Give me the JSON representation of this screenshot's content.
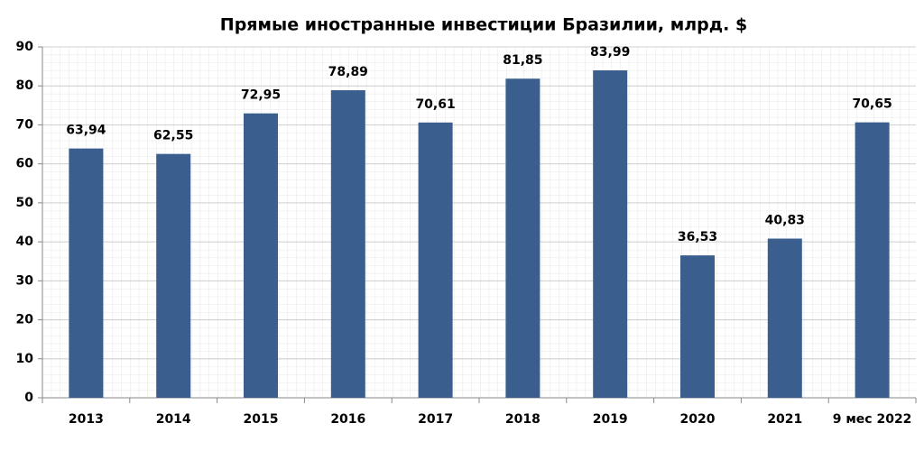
{
  "chart_data": {
    "type": "bar",
    "title": "Прямые иностранные инвестиции Бразилии, млрд. $",
    "categories": [
      "2013",
      "2014",
      "2015",
      "2016",
      "2017",
      "2018",
      "2019",
      "2020",
      "2021",
      "9 мес 2022"
    ],
    "values": [
      63.94,
      62.55,
      72.95,
      78.89,
      70.61,
      81.85,
      83.99,
      36.53,
      40.83,
      70.65
    ],
    "value_labels": [
      "63,94",
      "62,55",
      "72,95",
      "78,89",
      "70,61",
      "81,85",
      "83,99",
      "36,53",
      "40,83",
      "70,65"
    ],
    "color": "#3a5f8f",
    "ylim": [
      0,
      90
    ],
    "yticks": [
      0,
      10,
      20,
      30,
      40,
      50,
      60,
      70,
      80,
      90
    ],
    "grid": true
  }
}
